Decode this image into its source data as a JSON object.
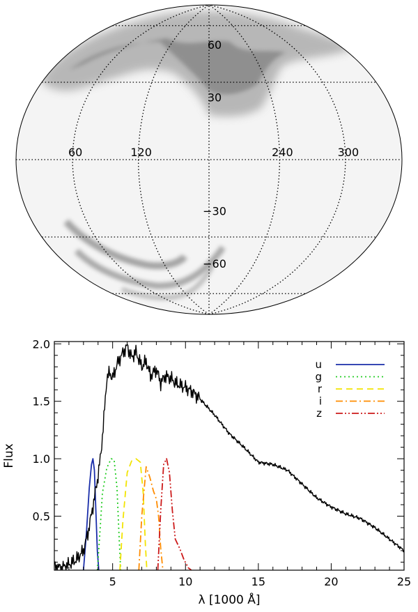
{
  "chart_data": [
    {
      "type": "heatmap",
      "projection": "aitoff-hammer",
      "description": "all-sky density map",
      "lat_lines": [
        60,
        30,
        0,
        -30,
        -60
      ],
      "lon_lines": [
        60,
        120,
        180,
        240,
        300
      ],
      "lat_labels": [
        "60",
        "30",
        "−30",
        "−60"
      ],
      "lon_labels": [
        "60",
        "120",
        "240",
        "300"
      ],
      "grid": "dotted"
    },
    {
      "type": "line",
      "xlabel": "λ [1000 Å]",
      "ylabel": "Flux",
      "xlim": [
        1,
        25
      ],
      "ylim": [
        0.03,
        2.02
      ],
      "xticks": [
        5,
        10,
        15,
        20,
        25
      ],
      "yticks": [
        0.5,
        1.0,
        1.5,
        2.0
      ],
      "xtick_labels": [
        "5",
        "10",
        "15",
        "20",
        "25"
      ],
      "ytick_labels": [
        "0.5",
        "1.0",
        "1.5",
        "2.0"
      ],
      "spectrum": {
        "name": "spectrum",
        "color": "#000000",
        "x": [
          1.0,
          1.5,
          2.0,
          2.5,
          3.0,
          3.3,
          3.6,
          3.8,
          4.0,
          4.2,
          4.4,
          4.6,
          4.8,
          5.0,
          5.3,
          5.6,
          6.0,
          6.3,
          6.6,
          7.0,
          7.3,
          7.6,
          8.0,
          8.3,
          8.6,
          9.0,
          9.3,
          9.6,
          10.0,
          10.5,
          11.0,
          12.0,
          13.0,
          14.0,
          15.0,
          16.0,
          17.0,
          18.0,
          19.0,
          20.0,
          21.0,
          22.0,
          23.0,
          24.0,
          25.0
        ],
        "y": [
          0.06,
          0.05,
          0.08,
          0.12,
          0.2,
          0.35,
          0.55,
          0.7,
          0.85,
          1.05,
          1.35,
          1.7,
          1.75,
          1.7,
          1.82,
          1.9,
          1.98,
          1.88,
          1.93,
          1.8,
          1.85,
          1.72,
          1.78,
          1.66,
          1.72,
          1.7,
          1.66,
          1.64,
          1.62,
          1.58,
          1.52,
          1.38,
          1.22,
          1.1,
          0.97,
          0.95,
          0.9,
          0.78,
          0.66,
          0.58,
          0.52,
          0.48,
          0.4,
          0.3,
          0.2
        ]
      },
      "legend": {
        "placement": "top-right",
        "entries": [
          "u",
          "g",
          "r",
          "i",
          "z"
        ]
      },
      "filters": [
        {
          "name": "u",
          "color": "#1a2eaa",
          "style": "solid",
          "x": [
            3.0,
            3.2,
            3.4,
            3.55,
            3.65,
            3.75,
            3.85,
            3.95,
            4.05
          ],
          "y": [
            0.03,
            0.35,
            0.75,
            0.95,
            1.0,
            0.9,
            0.55,
            0.2,
            0.03
          ]
        },
        {
          "name": "g",
          "color": "#22cc22",
          "style": "dotted",
          "x": [
            3.95,
            4.1,
            4.3,
            4.6,
            4.9,
            5.1,
            5.3,
            5.45,
            5.55
          ],
          "y": [
            0.03,
            0.3,
            0.7,
            0.92,
            1.0,
            0.99,
            0.75,
            0.3,
            0.03
          ]
        },
        {
          "name": "r",
          "color": "#f2e400",
          "style": "dashed",
          "x": [
            5.5,
            5.7,
            6.0,
            6.3,
            6.6,
            6.9,
            7.1,
            7.25,
            7.35
          ],
          "y": [
            0.03,
            0.45,
            0.88,
            0.98,
            1.0,
            0.97,
            0.7,
            0.25,
            0.03
          ]
        },
        {
          "name": "i",
          "color": "#ff8c00",
          "style": "dashdot",
          "x": [
            6.8,
            7.0,
            7.3,
            7.55,
            7.8,
            8.0,
            8.15,
            8.3,
            8.45
          ],
          "y": [
            0.03,
            0.5,
            0.93,
            0.84,
            0.72,
            0.65,
            0.5,
            0.22,
            0.03
          ]
        },
        {
          "name": "z",
          "color": "#cc1a1a",
          "style": "dashdotdot",
          "x": [
            8.1,
            8.3,
            8.5,
            8.7,
            8.9,
            9.1,
            9.3,
            9.6,
            9.9,
            10.2,
            10.4
          ],
          "y": [
            0.03,
            0.55,
            0.95,
            1.0,
            0.88,
            0.55,
            0.3,
            0.22,
            0.12,
            0.05,
            0.03
          ]
        }
      ]
    }
  ]
}
